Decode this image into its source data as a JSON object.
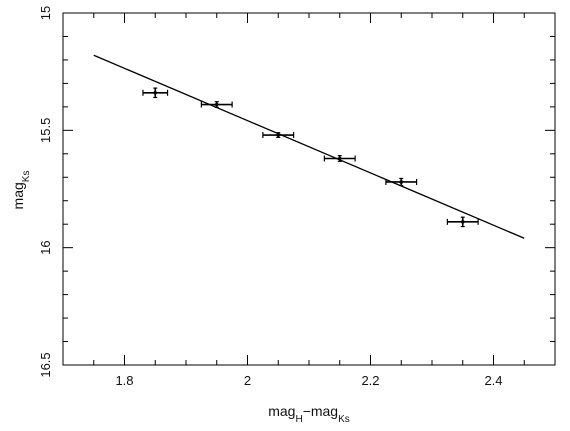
{
  "chart_data": {
    "type": "scatter",
    "title": "",
    "xlabel": {
      "parts": [
        "mag",
        "H",
        "−mag",
        "Ks"
      ]
    },
    "ylabel": {
      "parts": [
        "mag",
        "Ks"
      ]
    },
    "xlim": [
      1.7,
      2.5
    ],
    "ylim": [
      16.5,
      15.0
    ],
    "y_inverted": true,
    "grid": false,
    "x_ticks": [
      1.8,
      2.0,
      2.2,
      2.4
    ],
    "x_tick_labels": [
      "1.8",
      "2",
      "2.2",
      "2.4"
    ],
    "y_ticks": [
      15.0,
      15.5,
      16.0,
      16.5
    ],
    "y_tick_labels": [
      "15",
      "15.5",
      "16",
      "16.5"
    ],
    "points": [
      {
        "x": 1.85,
        "y": 15.34,
        "xerr": 0.02,
        "yerr": 0.02
      },
      {
        "x": 1.95,
        "y": 15.39,
        "xerr": 0.025,
        "yerr": 0.012
      },
      {
        "x": 2.05,
        "y": 15.52,
        "xerr": 0.025,
        "yerr": 0.01
      },
      {
        "x": 2.15,
        "y": 15.62,
        "xerr": 0.025,
        "yerr": 0.012
      },
      {
        "x": 2.25,
        "y": 15.72,
        "xerr": 0.025,
        "yerr": 0.015
      },
      {
        "x": 2.35,
        "y": 15.89,
        "xerr": 0.025,
        "yerr": 0.02
      }
    ],
    "fit_line": {
      "x": [
        1.75,
        2.45
      ],
      "y": [
        15.18,
        15.96
      ]
    },
    "colors": {
      "line": "#000000",
      "points": "#000000",
      "axes": "#000000"
    }
  }
}
